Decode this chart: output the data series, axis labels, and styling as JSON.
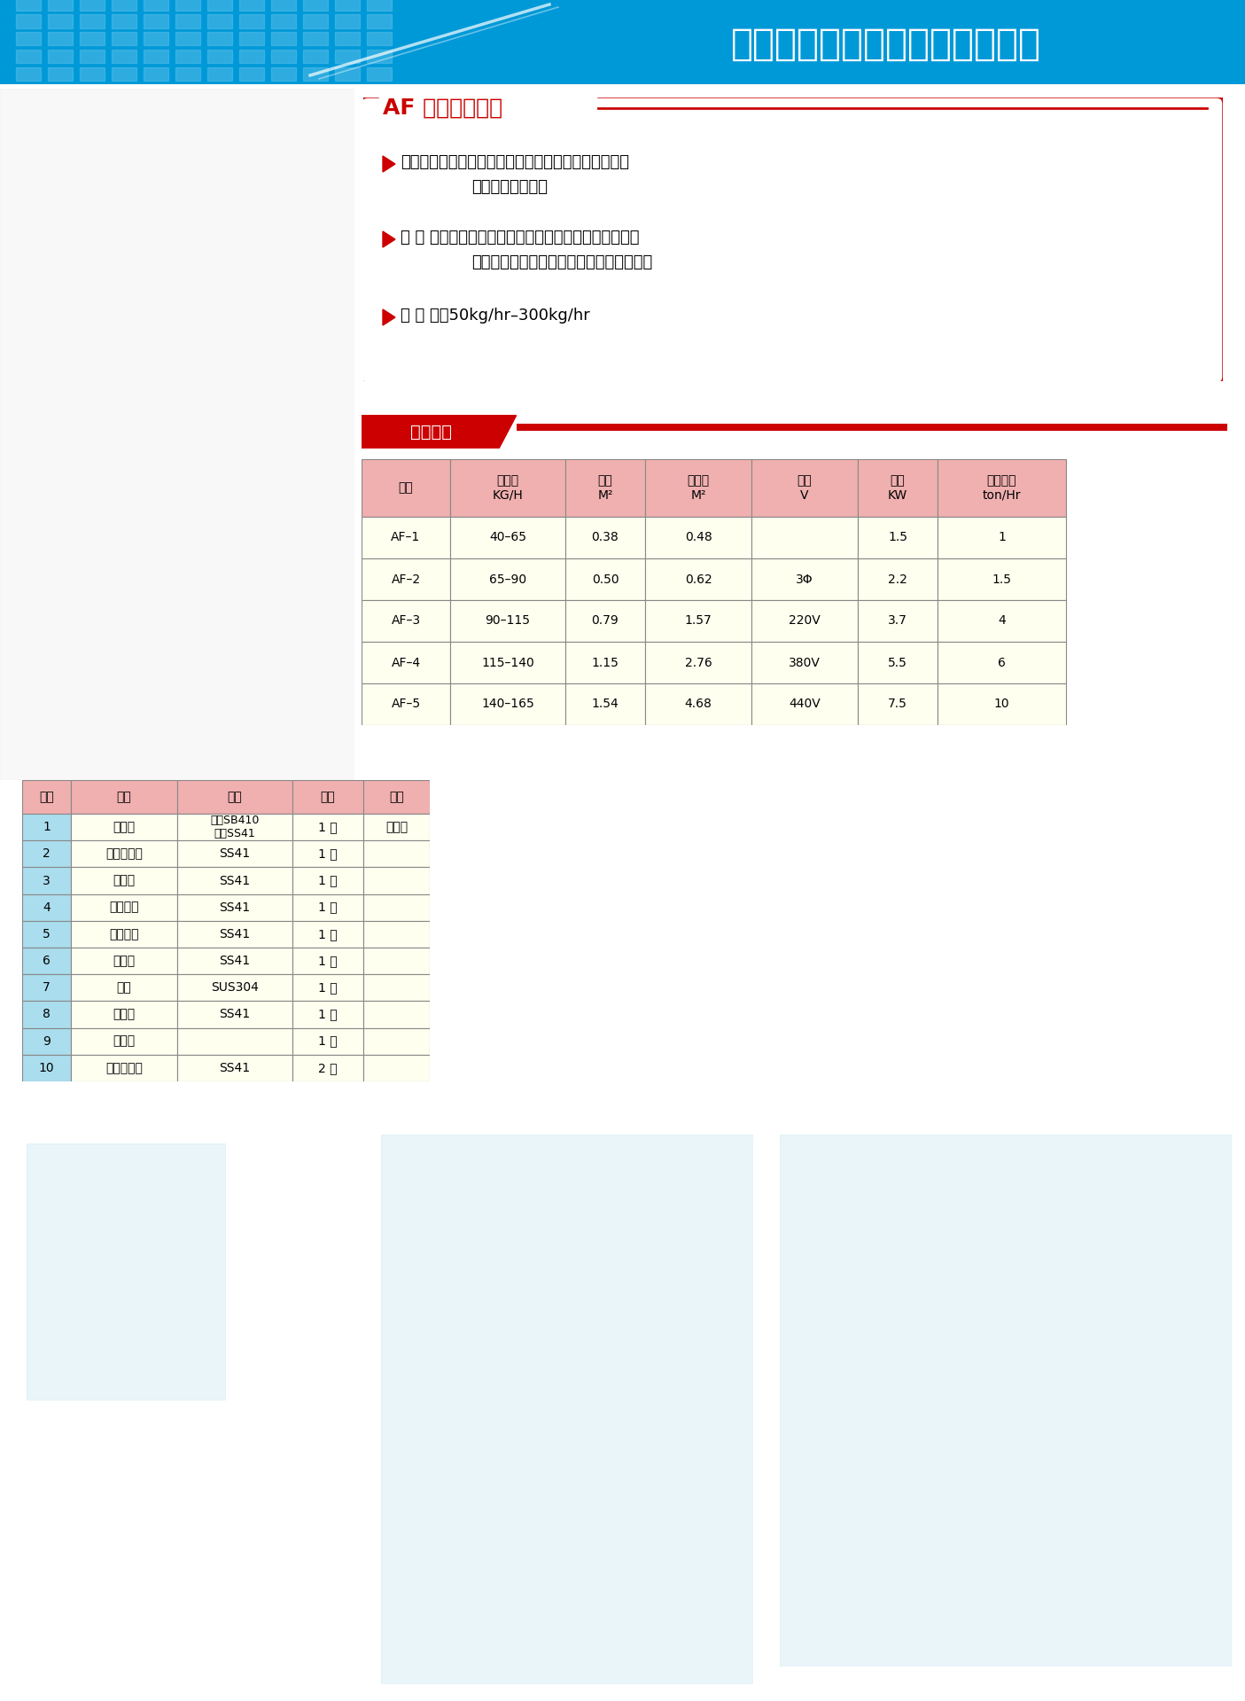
{
  "company_name": "诸城核工环保设备制造有限公司",
  "header_bg_color": "#0099d8",
  "page_bg_color": "#ffffff",
  "product_title": "AF 型立式焚烧炉",
  "product_title_color": "#cc0000",
  "info_box_border_color": "#cc0000",
  "bullet_color": "#cc0000",
  "tech_section_title": "技术参数",
  "tech_title_bg": "#cc0000",
  "tech_title_color": "#ffffff",
  "table_header_bg": "#f0b0b0",
  "table_data_bg": "#fffff0",
  "table_border_color": "#888888",
  "parts_header_bg": "#f0b0b0",
  "parts_first_col_bg": "#aaddee",
  "parts_data_bg": "#fffff0",
  "parts_border_color": "#888888",
  "grid_color": "#7dcfee",
  "line_color": "#cc0000"
}
